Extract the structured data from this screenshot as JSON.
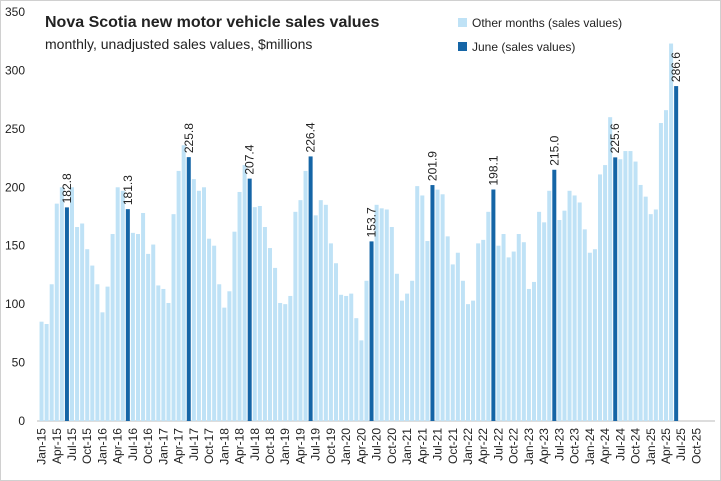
{
  "chart_data": {
    "type": "bar",
    "title": "Nova Scotia new motor vehicle sales values",
    "subtitle": "monthly, unadjusted sales values, $millions",
    "categories": [
      "Jan-15",
      null,
      null,
      "Apr-15",
      null,
      null,
      "Jul-15",
      null,
      null,
      "Oct-15",
      null,
      null,
      "Jan-16",
      null,
      null,
      "Apr-16",
      null,
      null,
      "Jul-16",
      null,
      null,
      "Oct-16",
      null,
      null,
      "Jan-17",
      null,
      null,
      "Apr-17",
      null,
      null,
      "Jul-17",
      null,
      null,
      "Oct-17",
      null,
      null,
      "Jan-18",
      null,
      null,
      "Apr-18",
      null,
      null,
      "Jul-18",
      null,
      null,
      "Oct-18",
      null,
      null,
      "Jan-19",
      null,
      null,
      "Apr-19",
      null,
      null,
      "Jul-19",
      null,
      null,
      "Oct-19",
      null,
      null,
      "Jan-20",
      null,
      null,
      "Apr-20",
      null,
      null,
      "Jul-20",
      null,
      null,
      "Oct-20",
      null,
      null,
      "Jan-21",
      null,
      null,
      "Apr-21",
      null,
      null,
      "Jul-21",
      null,
      null,
      "Oct-21",
      null,
      null,
      "Jan-22",
      null,
      null,
      "Apr-22",
      null,
      null,
      "Jul-22",
      null,
      null,
      "Oct-22",
      null,
      null,
      "Jan-23",
      null,
      null,
      "Apr-23",
      null,
      null,
      "Jul-23",
      null,
      null,
      "Oct-23",
      null,
      null,
      "Jan-24",
      null,
      null,
      "Apr-24",
      null,
      null,
      "Jul-24",
      null,
      null,
      "Oct-24",
      null,
      null,
      "Jan-25",
      null,
      null,
      "Apr-25",
      null,
      null,
      "Jul-25",
      null,
      null,
      "Oct-25"
    ],
    "series": [
      {
        "name": "Other months (sales values)",
        "color": "#bfe2f6",
        "values": [
          85,
          83,
          117,
          186,
          200,
          null,
          200,
          166,
          169,
          147,
          133,
          117,
          93,
          115,
          160,
          200,
          197,
          null,
          161,
          160,
          178,
          143,
          151,
          116,
          113,
          101,
          177,
          214,
          236,
          null,
          207,
          197,
          200,
          156,
          150,
          117,
          97,
          111,
          162,
          196,
          219,
          null,
          183,
          184,
          166,
          148,
          131,
          101,
          100,
          107,
          179,
          189,
          214,
          null,
          176,
          189,
          185,
          152,
          135,
          108,
          107,
          109,
          88,
          69,
          120,
          null,
          185,
          182,
          181,
          166,
          126,
          103,
          109,
          120,
          201,
          193,
          154,
          null,
          198,
          194,
          158,
          134,
          144,
          120,
          100,
          103,
          152,
          155,
          179,
          null,
          150,
          160,
          140,
          145,
          160,
          153,
          113,
          119,
          179,
          170,
          197,
          null,
          172,
          180,
          197,
          193,
          187,
          164,
          144,
          147,
          211,
          219,
          260,
          null,
          224,
          231,
          231,
          222,
          202,
          192,
          177,
          181,
          255,
          266,
          323,
          null,
          null,
          null,
          null,
          null
        ]
      },
      {
        "name": "June (sales values)",
        "color": "#1565a6",
        "values": [
          null,
          null,
          null,
          null,
          null,
          182.8,
          null,
          null,
          null,
          null,
          null,
          null,
          null,
          null,
          null,
          null,
          null,
          181.3,
          null,
          null,
          null,
          null,
          null,
          null,
          null,
          null,
          null,
          null,
          null,
          225.8,
          null,
          null,
          null,
          null,
          null,
          null,
          null,
          null,
          null,
          null,
          null,
          207.4,
          null,
          null,
          null,
          null,
          null,
          null,
          null,
          null,
          null,
          null,
          null,
          226.4,
          null,
          null,
          null,
          null,
          null,
          null,
          null,
          null,
          null,
          null,
          null,
          153.7,
          null,
          null,
          null,
          null,
          null,
          null,
          null,
          null,
          null,
          null,
          null,
          201.9,
          null,
          null,
          null,
          null,
          null,
          null,
          null,
          null,
          null,
          null,
          null,
          198.1,
          null,
          null,
          null,
          null,
          null,
          null,
          null,
          null,
          null,
          null,
          null,
          215.0,
          null,
          null,
          null,
          null,
          null,
          null,
          null,
          null,
          null,
          null,
          null,
          225.6,
          null,
          null,
          null,
          null,
          null,
          null,
          null,
          null,
          null,
          null,
          null,
          286.6,
          null,
          null,
          null,
          null
        ],
        "value_labels": [
          null,
          null,
          null,
          null,
          null,
          "182.8",
          null,
          null,
          null,
          null,
          null,
          null,
          null,
          null,
          null,
          null,
          null,
          "181.3",
          null,
          null,
          null,
          null,
          null,
          null,
          null,
          null,
          null,
          null,
          null,
          "225.8",
          null,
          null,
          null,
          null,
          null,
          null,
          null,
          null,
          null,
          null,
          null,
          "207.4",
          null,
          null,
          null,
          null,
          null,
          null,
          null,
          null,
          null,
          null,
          null,
          "226.4",
          null,
          null,
          null,
          null,
          null,
          null,
          null,
          null,
          null,
          null,
          null,
          "153.7",
          null,
          null,
          null,
          null,
          null,
          null,
          null,
          null,
          null,
          null,
          null,
          "201.9",
          null,
          null,
          null,
          null,
          null,
          null,
          null,
          null,
          null,
          null,
          null,
          "198.1",
          null,
          null,
          null,
          null,
          null,
          null,
          null,
          null,
          null,
          null,
          null,
          "215.0",
          null,
          null,
          null,
          null,
          null,
          null,
          null,
          null,
          null,
          null,
          null,
          "225.6",
          null,
          null,
          null,
          null,
          null,
          null,
          null,
          null,
          null,
          null,
          null,
          "286.6",
          null,
          null,
          null,
          null
        ]
      }
    ],
    "ylim": [
      0,
      350
    ],
    "yticks": [
      0,
      50,
      100,
      150,
      200,
      250,
      300,
      350
    ],
    "grid": false,
    "legend": "top-right"
  }
}
